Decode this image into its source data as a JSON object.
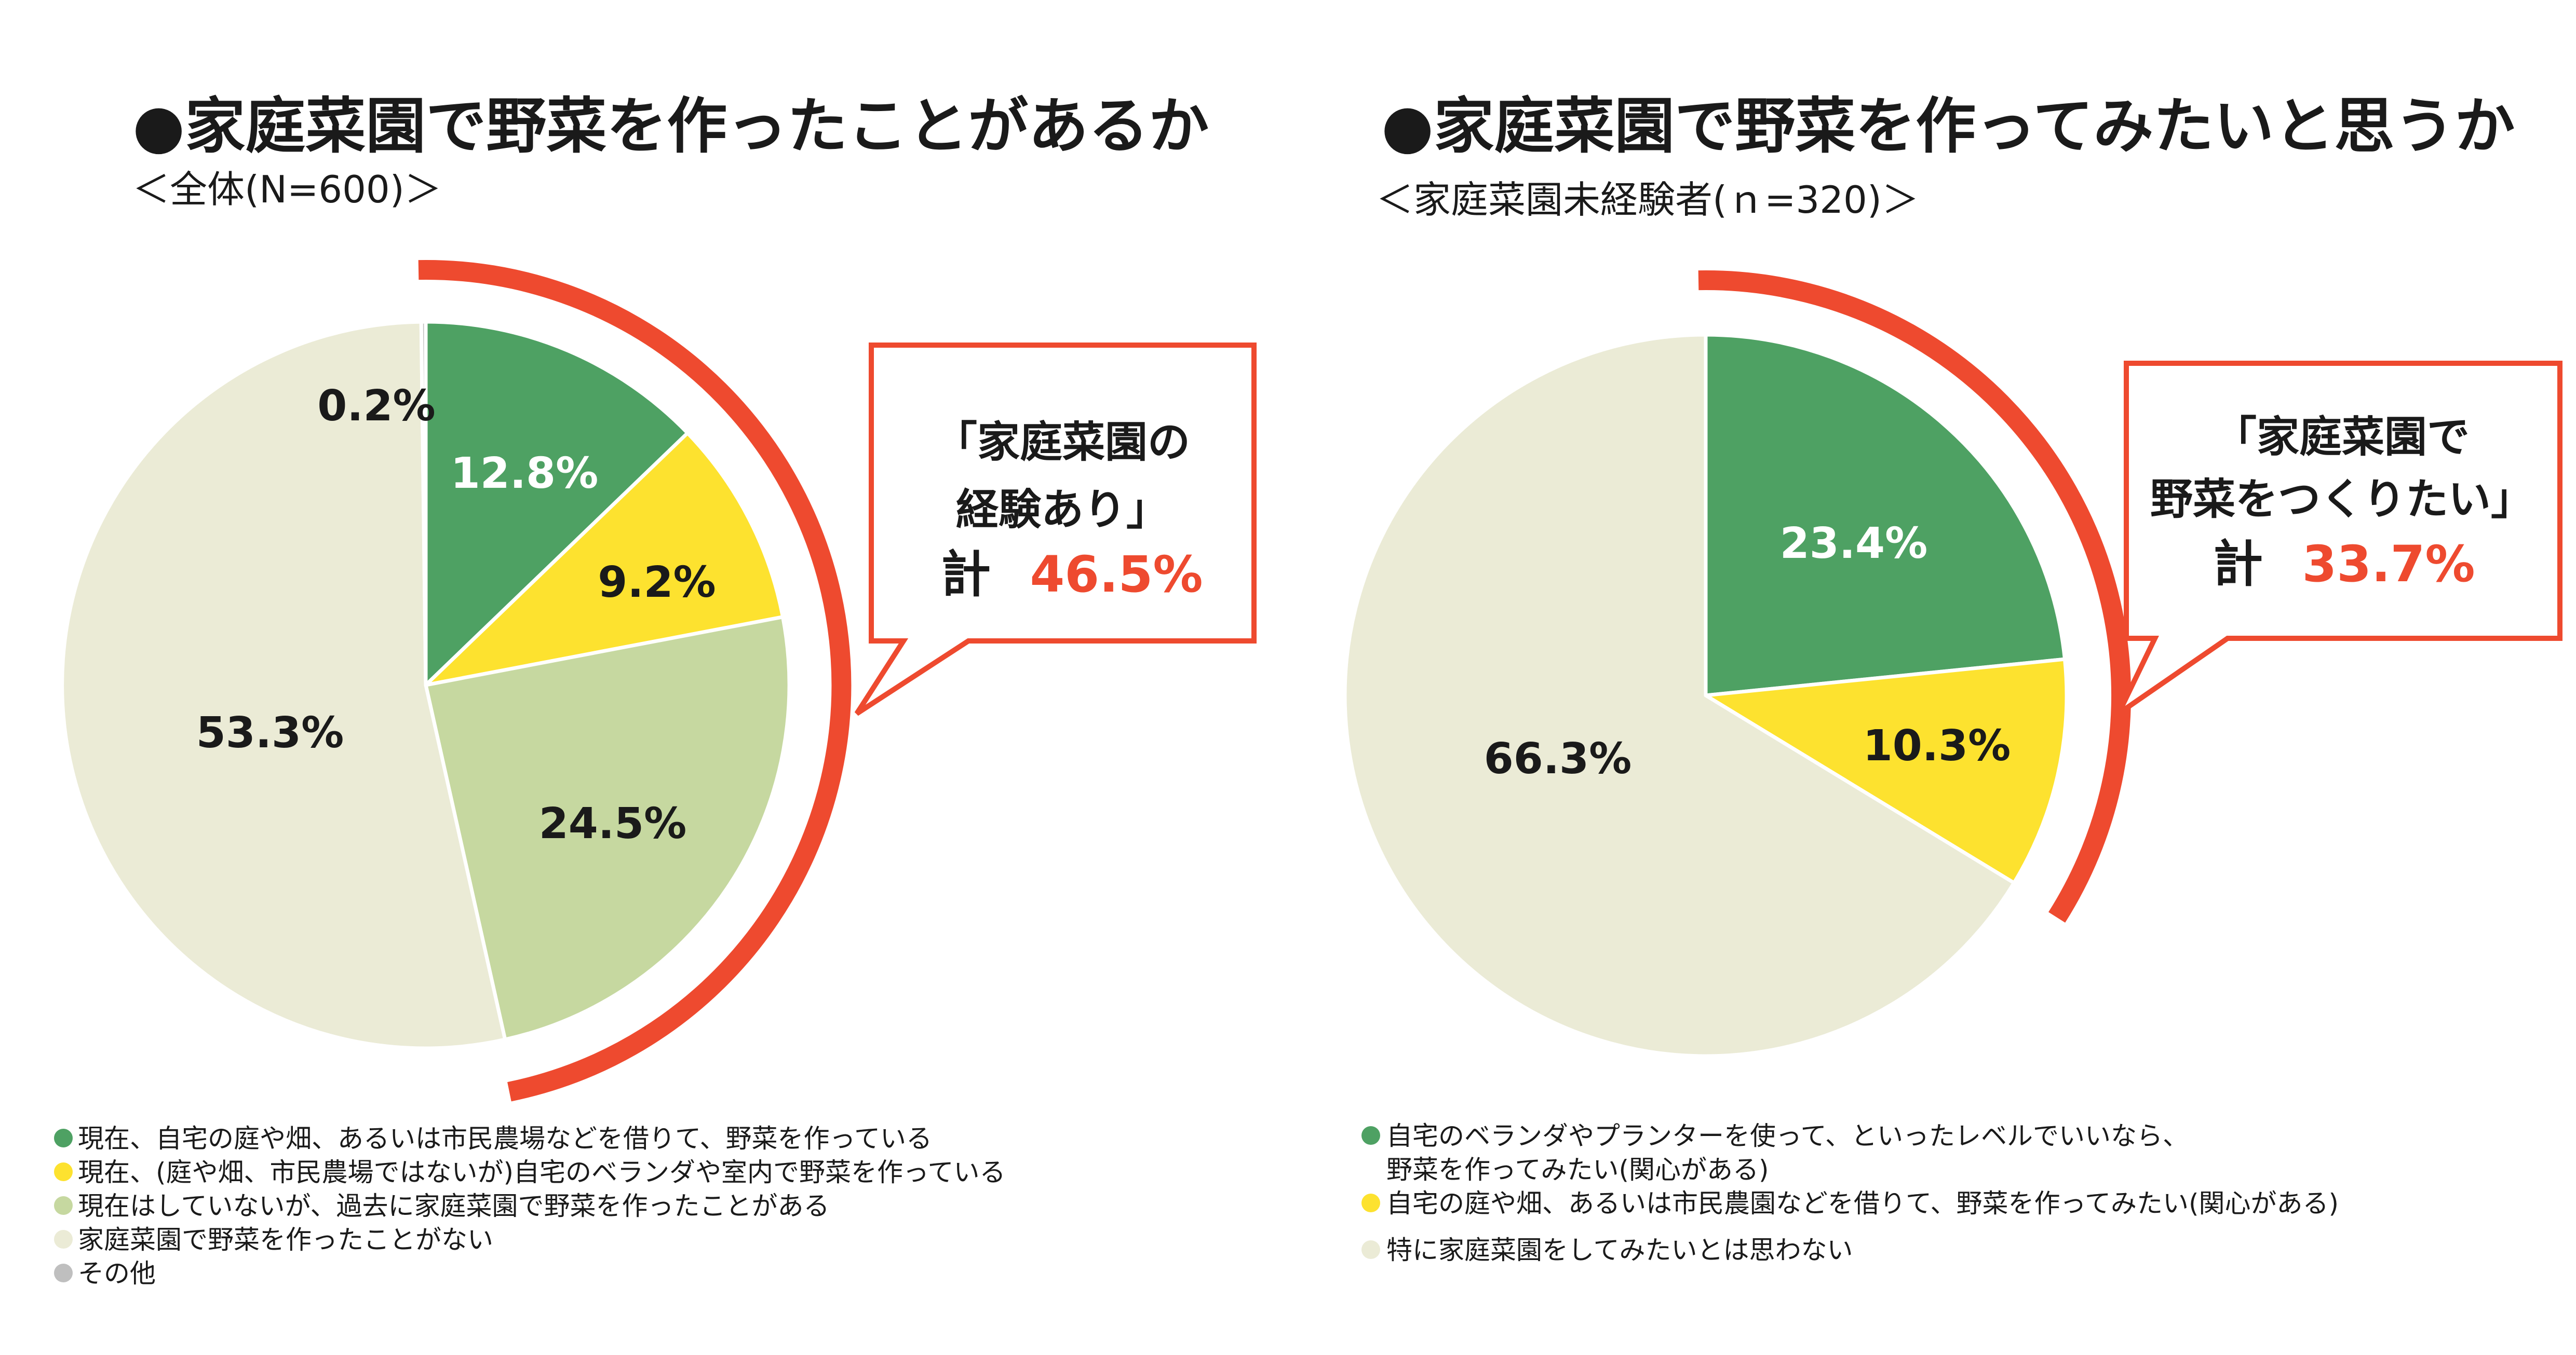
{
  "colors": {
    "green": "#4ea163",
    "yellow": "#fde22f",
    "light_green": "#c6d8a0",
    "beige": "#ebebd6",
    "gray": "#bfbfbf",
    "red": "#ee4a2f",
    "dark": "#1a1a1a",
    "white": "#ffffff"
  },
  "charts": [
    {
      "title": "●家庭菜園で野菜を作ったことがあるか",
      "subtitle": "＜全体(N=600)＞",
      "callout_line1": "「家庭菜園の",
      "callout_line2": "経験あり」",
      "callout_total_label": "計",
      "callout_total_value": "46.5%",
      "legend": [
        {
          "label": "現在、自宅の庭や畑、あるいは市民農場などを借りて、野菜を作っている"
        },
        {
          "label": "現在、(庭や畑、市民農場ではないが)自宅のベランダや室内で野菜を作っている"
        },
        {
          "label": "現在はしていないが、過去に家庭菜園で野菜を作ったことがある"
        },
        {
          "label": "家庭菜園で野菜を作ったことがない"
        },
        {
          "label": "その他"
        }
      ]
    },
    {
      "title": "●家庭菜園で野菜を作ってみたいと思うか",
      "subtitle": "＜家庭菜園未経験者(ｎ=320)＞",
      "callout_line1": "「家庭菜園で",
      "callout_line2": "野菜をつくりたい」",
      "callout_total_label": "計",
      "callout_total_value": "33.7%",
      "legend": [
        {
          "label": "自宅のベランダやプランターを使って、といったレベルでいいなら、",
          "label2": "野菜を作ってみたい(関心がある)"
        },
        {
          "label": "自宅の庭や畑、あるいは市民農園などを借りて、野菜を作ってみたい(関心がある)"
        },
        {
          "label": "特に家庭菜園をしてみたいとは思わない"
        }
      ]
    }
  ],
  "chart_data": [
    {
      "type": "pie",
      "title": "●家庭菜園で野菜を作ったことがあるか",
      "subtitle": "＜全体(N=600)＞",
      "slices": [
        {
          "label": "現在、自宅の庭や畑、あるいは市民農場などを借りて、野菜を作っている",
          "value": 12.8,
          "value_label": "12.8%",
          "color": "#4ea163",
          "text_color": "#ffffff"
        },
        {
          "label": "現在、(庭や畑、市民農場ではないが)自宅のベランダや室内で野菜を作っている",
          "value": 9.2,
          "value_label": "9.2%",
          "color": "#fde22f",
          "text_color": "#1a1a1a"
        },
        {
          "label": "現在はしていないが、過去に家庭菜園で野菜を作ったことがある",
          "value": 24.5,
          "value_label": "24.5%",
          "color": "#c6d8a0",
          "text_color": "#1a1a1a"
        },
        {
          "label": "家庭菜園で野菜を作ったことがない",
          "value": 53.3,
          "value_label": "53.3%",
          "color": "#ebebd6",
          "text_color": "#1a1a1a"
        },
        {
          "label": "その他",
          "value": 0.2,
          "value_label": "0.2%",
          "color": "#bfbfbf",
          "text_color": "#1a1a1a"
        }
      ],
      "highlight_total": 46.5
    },
    {
      "type": "pie",
      "title": "●家庭菜園で野菜を作ってみたいと思うか",
      "subtitle": "＜家庭菜園未経験者(ｎ=320)＞",
      "slices": [
        {
          "label": "自宅のベランダやプランターを使って、といったレベルでいいなら、野菜を作ってみたい(関心がある)",
          "value": 23.4,
          "value_label": "23.4%",
          "color": "#4ea163",
          "text_color": "#ffffff"
        },
        {
          "label": "自宅の庭や畑、あるいは市民農園などを借りて、野菜を作ってみたい(関心がある)",
          "value": 10.3,
          "value_label": "10.3%",
          "color": "#fde22f",
          "text_color": "#1a1a1a"
        },
        {
          "label": "特に家庭菜園をしてみたいとは思わない",
          "value": 66.3,
          "value_label": "66.3%",
          "color": "#ebebd6",
          "text_color": "#1a1a1a"
        }
      ],
      "highlight_total": 33.7
    }
  ]
}
